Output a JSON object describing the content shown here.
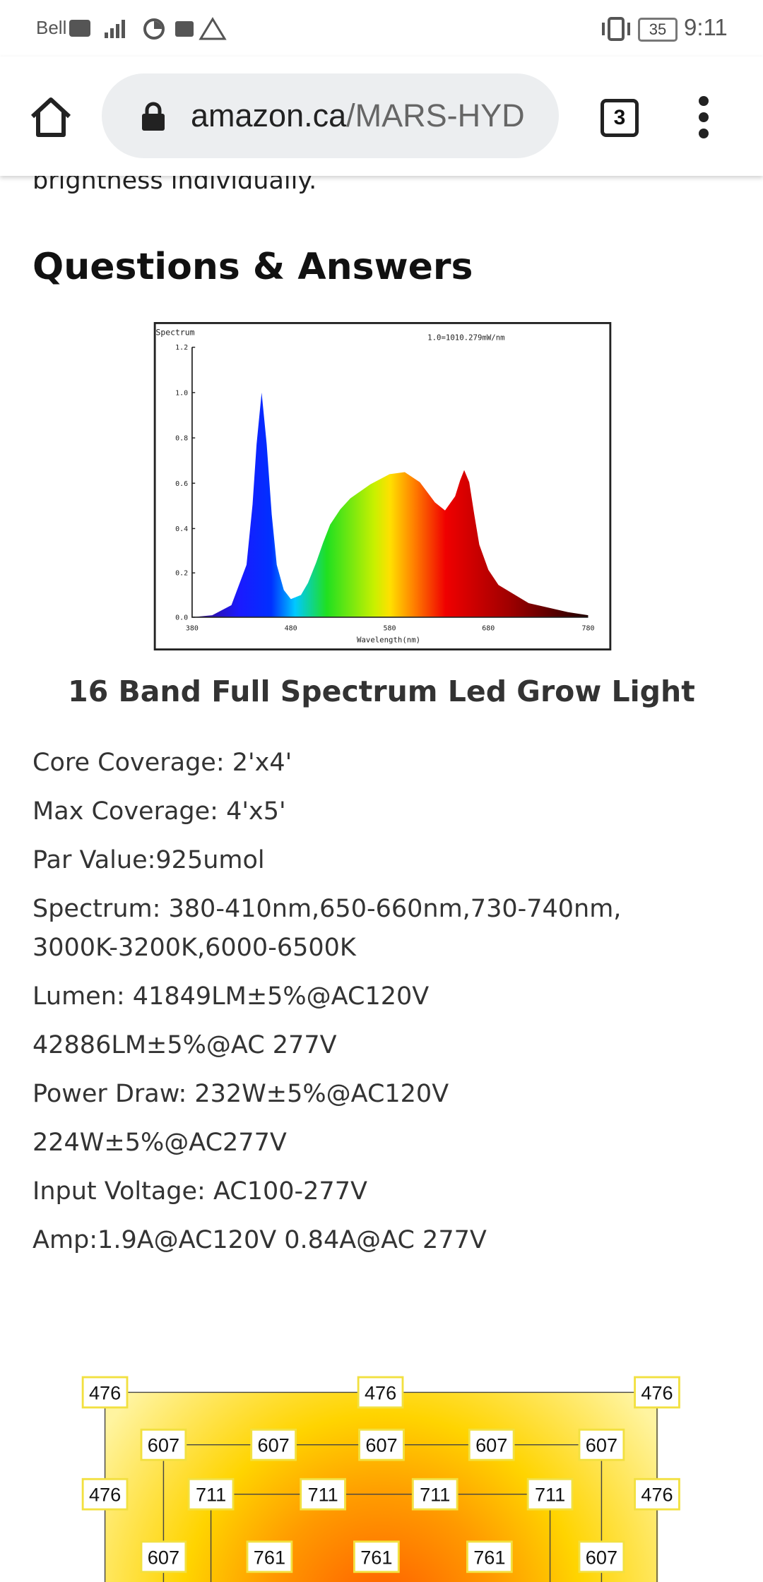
{
  "status_bar": {
    "carrier": "Bell",
    "battery": "35",
    "time": "9:11"
  },
  "browser": {
    "url_host": "amazon.ca",
    "url_path": "/MARS-HYD",
    "tab_count": "3"
  },
  "content": {
    "cut_text": "brightness individually.",
    "section_title": "Questions & Answers",
    "spectrum_image": {
      "title": "Spectrum",
      "scale_note": "1.0=1010.279mW/nm",
      "y_ticks": [
        "1.2",
        "1.0",
        "0.8",
        "0.6",
        "0.4",
        "0.2",
        "0.0"
      ],
      "x_ticks": [
        "380",
        "480",
        "580",
        "680",
        "780"
      ],
      "x_label": "Wavelength(nm)"
    },
    "caption": "16 Band Full Spectrum Led Grow Light",
    "specs": [
      "Core Coverage: 2'x4'",
      "Max Coverage: 4'x5'",
      "Par Value:925umol",
      "Spectrum: 380-410nm,650-660nm,730-740nm, 3000K-3200K,6000-6500K",
      "Lumen: 41849LM±5%@AC120V",
      "42886LM±5%@AC 277V",
      "Power Draw: 232W±5%@AC120V",
      "224W±5%@AC277V",
      "Input Voltage: AC100-277V",
      "Amp:1.9A@AC120V 0.84A@AC 277V"
    ],
    "par_map": {
      "rows": [
        [
          476,
          476,
          476
        ],
        [
          607,
          607,
          607,
          607,
          607
        ],
        [
          476,
          711,
          711,
          711,
          711,
          476
        ],
        [
          607,
          761,
          761,
          761,
          607
        ]
      ]
    }
  }
}
